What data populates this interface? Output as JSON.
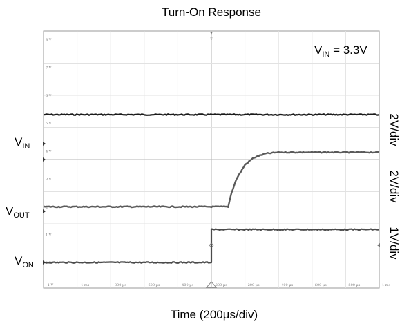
{
  "chart_data": {
    "type": "line",
    "title": "Turn-On Response",
    "xlabel": "Time (200µs/div)",
    "annotation": {
      "main": "V",
      "sub": "IN",
      "rest": " = 3.3V"
    },
    "grid": true,
    "x_tick_labels": [
      "-1 V",
      "-1 ms",
      "-800 µs",
      "-600 µs",
      "-400 µs",
      "-200 µs",
      "0",
      "200 µs",
      "400 µs",
      "600 µs",
      "800 µs",
      "1 ms"
    ],
    "y_tick_labels": [
      "8 V",
      "7 V",
      "6 V",
      "5 V",
      "4 V",
      "3 V",
      "2 V",
      "1 V",
      "0 V"
    ],
    "scale_labels": [
      "2V/div",
      "2V/div",
      "1V/div"
    ],
    "xlim": [
      -1000,
      1000
    ],
    "ylim_div": [
      0,
      8
    ],
    "series": [
      {
        "name_main": "V",
        "name_sub": "IN",
        "color": "#1a1a1a",
        "x": [
          -1000,
          1000
        ],
        "y_div": [
          5.3,
          5.3
        ]
      },
      {
        "name_main": "V",
        "name_sub": "OUT",
        "color": "#5a5a5a",
        "x": [
          -1000,
          0,
          100,
          120,
          150,
          200,
          250,
          320,
          400,
          1000
        ],
        "y_div": [
          2.0,
          2.0,
          2.0,
          2.5,
          3.0,
          3.5,
          3.75,
          3.9,
          3.95,
          3.95
        ]
      },
      {
        "name_main": "V",
        "name_sub": "ON",
        "color": "#4a4a4a",
        "x": [
          -1000,
          0,
          0,
          1000
        ],
        "y_div": [
          0.0,
          0.0,
          1.18,
          1.18
        ]
      }
    ]
  }
}
